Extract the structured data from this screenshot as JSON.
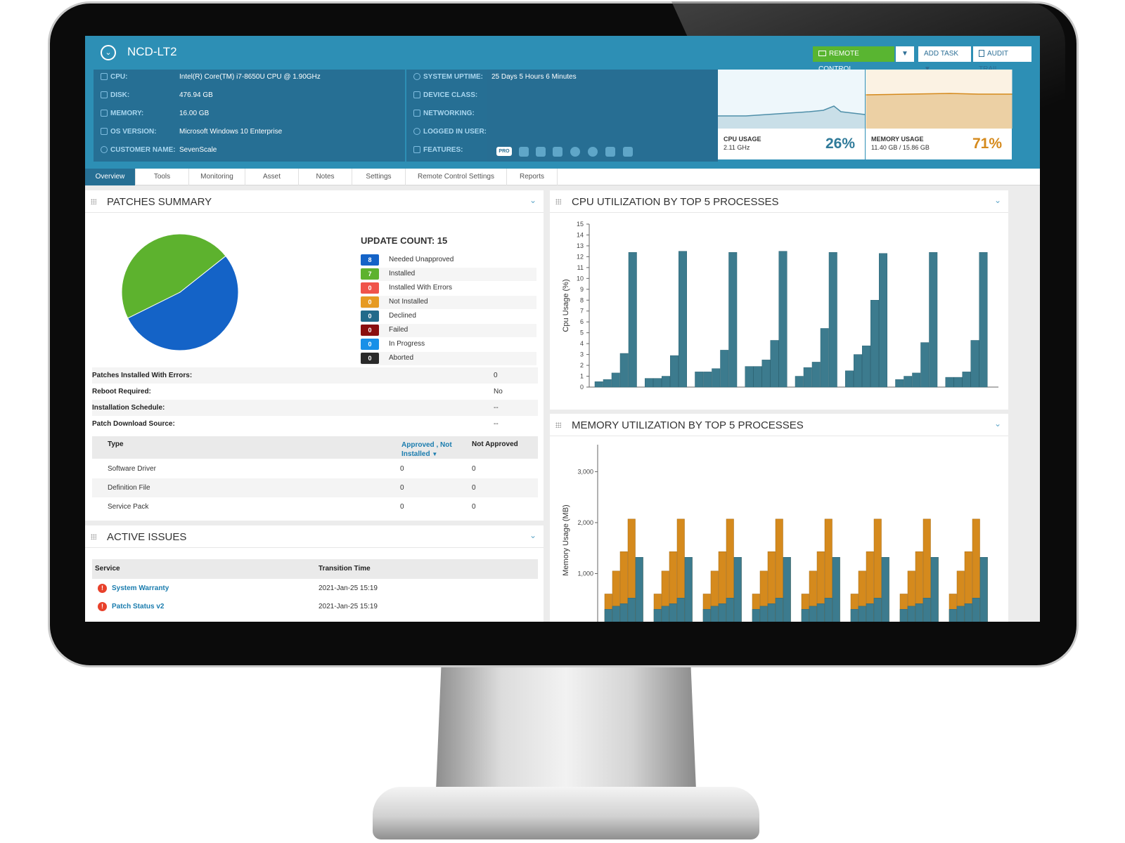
{
  "header": {
    "device_name": "NCD-LT2",
    "buttons": {
      "remote_control": "REMOTE CONTROL",
      "add_task": "ADD TASK",
      "audit_trail": "AUDIT TRAIL"
    },
    "info_left": [
      {
        "label": "CPU:",
        "value": "Intel(R) Core(TM) i7-8650U CPU @ 1.90GHz"
      },
      {
        "label": "DISK:",
        "value": "476.94 GB"
      },
      {
        "label": "MEMORY:",
        "value": "16.00 GB"
      },
      {
        "label": "OS VERSION:",
        "value": "Microsoft Windows 10 Enterprise"
      },
      {
        "label": "CUSTOMER NAME:",
        "value": "SevenScale"
      }
    ],
    "info_right": [
      {
        "label": "SYSTEM UPTIME:",
        "value": "25 Days 5 Hours 6 Minutes"
      },
      {
        "label": "DEVICE CLASS:",
        "value": ""
      },
      {
        "label": "NETWORKING:",
        "value": ""
      },
      {
        "label": "LOGGED IN USER:",
        "value": ""
      },
      {
        "label": "FEATURES:",
        "value": ""
      }
    ],
    "feature_badge": "PRO",
    "cpu_card": {
      "label": "CPU USAGE",
      "sub": "2.11 GHz",
      "percent": "26%",
      "color": "#2f7a99"
    },
    "mem_card": {
      "label": "MEMORY USAGE",
      "sub": "11.40 GB / 15.86 GB",
      "percent": "71%",
      "color": "#d58a1d"
    }
  },
  "tabs": [
    "Overview",
    "Tools",
    "Monitoring",
    "Asset",
    "Notes",
    "Settings",
    "Remote Control Settings",
    "Reports"
  ],
  "patches": {
    "title": "PATCHES SUMMARY",
    "update_count": "UPDATE COUNT: 15",
    "legend": [
      {
        "count": "8",
        "label": "Needed Unapproved",
        "color": "#1463c7"
      },
      {
        "count": "7",
        "label": "Installed",
        "color": "#5db22e"
      },
      {
        "count": "0",
        "label": "Installed With Errors",
        "color": "#f0534a"
      },
      {
        "count": "0",
        "label": "Not Installed",
        "color": "#e69a22"
      },
      {
        "count": "0",
        "label": "Declined",
        "color": "#226a8a"
      },
      {
        "count": "0",
        "label": "Failed",
        "color": "#8a0f0f"
      },
      {
        "count": "0",
        "label": "In Progress",
        "color": "#1890e8"
      },
      {
        "count": "0",
        "label": "Aborted",
        "color": "#2a2a2a"
      }
    ],
    "details": [
      {
        "k": "Patches Installed With Errors:",
        "v": "0"
      },
      {
        "k": "Reboot Required:",
        "v": "No"
      },
      {
        "k": "Installation Schedule:",
        "v": "--"
      },
      {
        "k": "Patch Download Source:",
        "v": "--"
      }
    ],
    "table": {
      "headers": [
        "Type",
        "Approved , Not Installed",
        "Not Approved"
      ],
      "rows": [
        [
          "Software Driver",
          "0",
          "0"
        ],
        [
          "Definition File",
          "0",
          "0"
        ],
        [
          "Service Pack",
          "0",
          "0"
        ]
      ]
    }
  },
  "active_issues": {
    "title": "ACTIVE ISSUES",
    "headers": [
      "Service",
      "Transition Time"
    ],
    "rows": [
      {
        "service": "System Warranty",
        "time": "2021-Jan-25 15:19"
      },
      {
        "service": "Patch Status v2",
        "time": "2021-Jan-25 15:19"
      }
    ]
  },
  "cpu_chart_title": "CPU UTILIZATION BY TOP 5 PROCESSES",
  "mem_chart_title": "MEMORY UTILIZATION BY TOP 5 PROCESSES",
  "chart_data": [
    {
      "type": "pie",
      "title": "",
      "categories": [
        "Needed Unapproved",
        "Installed"
      ],
      "values": [
        8,
        7
      ],
      "colors": [
        "#1463c7",
        "#5db22e"
      ]
    },
    {
      "type": "bar",
      "title": "CPU UTILIZATION BY TOP 5 PROCESSES",
      "ylabel": "Cpu Usage (%)",
      "ylim": [
        0,
        15
      ],
      "yticks": [
        0,
        1,
        2,
        3,
        4,
        5,
        6,
        7,
        8,
        9,
        10,
        11,
        12,
        13,
        14,
        15
      ],
      "grid": false,
      "color": "#3c7b8e",
      "groups": [
        [
          0.5,
          0.7,
          1.3,
          3.1,
          12.4
        ],
        [
          0.8,
          0.8,
          1.0,
          2.9,
          12.5
        ],
        [
          1.4,
          1.4,
          1.7,
          3.4,
          12.4
        ],
        [
          1.9,
          1.9,
          2.5,
          4.3,
          12.5
        ],
        [
          1.0,
          1.8,
          2.3,
          5.4,
          12.4
        ],
        [
          1.5,
          3.0,
          3.8,
          8.0,
          12.3
        ],
        [
          0.7,
          1.0,
          1.3,
          4.1,
          12.4
        ],
        [
          0.9,
          0.9,
          1.4,
          4.3,
          12.4
        ]
      ]
    },
    {
      "type": "bar",
      "title": "MEMORY UTILIZATION BY TOP 5 PROCESSES",
      "ylabel": "Memory Usage (MB)",
      "ylim": [
        0,
        3000
      ],
      "yticks": [
        1000,
        2000,
        3000
      ],
      "grid": false,
      "series": [
        {
          "color": "#3c7b8e",
          "values": [
            [
              300,
              360,
              410,
              520,
              1320
            ],
            [
              300,
              370,
              430,
              520,
              1320
            ]
          ]
        },
        {
          "color": "#d58a1d",
          "values": [
            [
              600,
              1050,
              1430,
              2070,
              1320
            ],
            [
              600,
              1050,
              1430,
              2070,
              1320
            ]
          ]
        }
      ],
      "note": "8 groups, each group identical pattern"
    }
  ]
}
